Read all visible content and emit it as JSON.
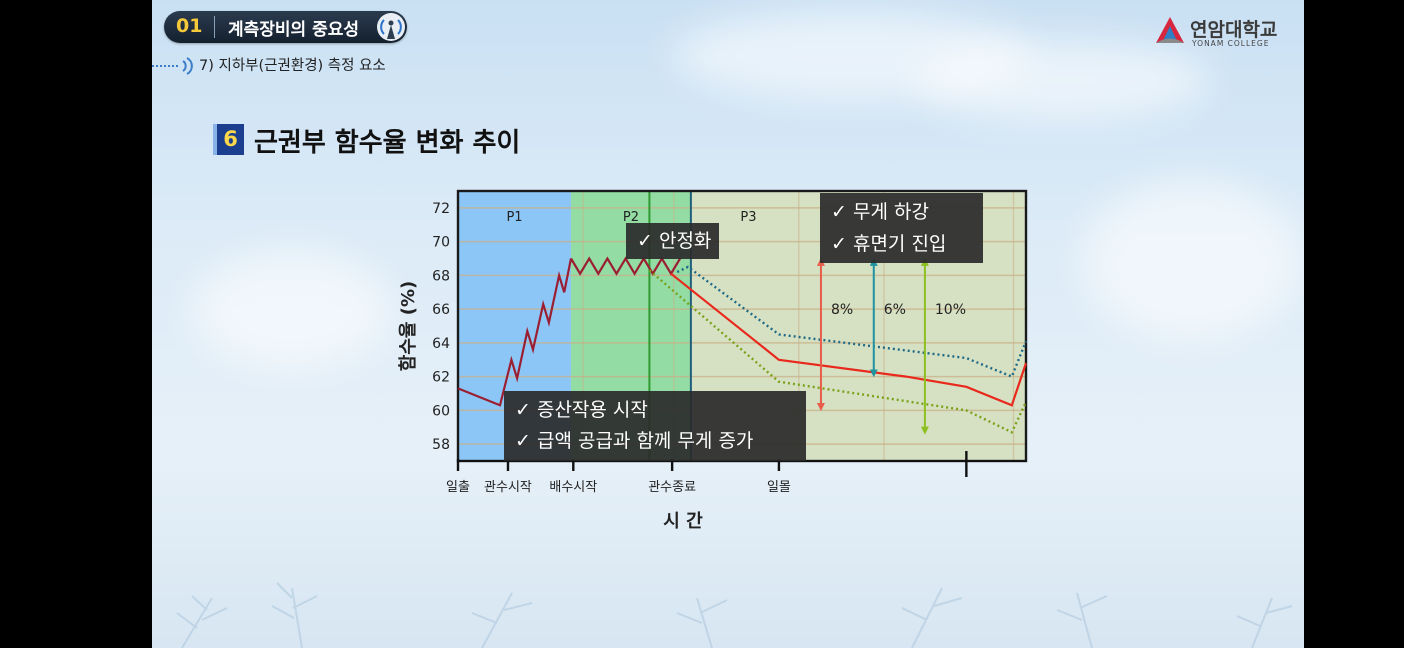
{
  "header": {
    "section_number": "01",
    "section_title": "계측장비의 중요성",
    "subsection": "7) 지하부(근권환경) 측정 요소"
  },
  "logo": {
    "name": "연암대학교",
    "sub": "YONAM COLLEGE",
    "icon": "yonam-logo-icon"
  },
  "slide_title": {
    "badge": "6",
    "text": "근권부 함수율 변화 추이"
  },
  "callouts": {
    "stable": [
      "✓ 안정화"
    ],
    "weight": [
      "✓ 무게 하강",
      "✓ 휴면기 진입"
    ],
    "transpiration": [
      "✓ 증산작용 시작",
      "✓ 급액 공급과 함께 무게 증가"
    ]
  },
  "colors": {
    "series_red": "#e8291c",
    "series_teal": "#1f6a86",
    "series_olive": "#7aa21a",
    "zig": "#9b1f33",
    "p1": "#8cc6f6",
    "p2": "#93dda4",
    "p3": "#d6e1c3",
    "arrow_red": "#e85c4a",
    "arrow_teal": "#1f93a0",
    "arrow_green": "#8cc021"
  },
  "chart_data": {
    "type": "line",
    "title": "",
    "ylabel": "함수율 (%)",
    "xlabel": "시   간",
    "ylim": [
      57,
      73
    ],
    "yticks": [
      58,
      60,
      62,
      64,
      66,
      68,
      70,
      72
    ],
    "grid": true,
    "x_domain": [
      0,
      100
    ],
    "phases": [
      {
        "label": "P1",
        "x_start": 0,
        "x_end": 19.9
      },
      {
        "label": "P2",
        "x_start": 19.9,
        "x_end": 41.0
      },
      {
        "label": "P3",
        "x_start": 41.0,
        "x_end": 100
      }
    ],
    "vertical_lines": [
      {
        "x": 33.7,
        "color": "#2f9a2f"
      },
      {
        "x": 41.0,
        "color": "#1f5f7a"
      }
    ],
    "x_events": [
      {
        "label": "일출",
        "x": 0
      },
      {
        "label": "관수시작",
        "x": 8.8
      },
      {
        "label": "배수시작",
        "x": 20.3
      },
      {
        "label": "관수종료",
        "x": 37.7
      },
      {
        "label": "일몰",
        "x": 56.5
      },
      {
        "label": "",
        "x": 89.5
      }
    ],
    "series": [
      {
        "name": "",
        "style": "solid",
        "color": "#9b1f33",
        "points": [
          [
            0,
            61.3
          ],
          [
            7.4,
            60.3
          ],
          [
            9.4,
            63.0
          ],
          [
            10.4,
            61.9
          ],
          [
            12.2,
            64.7
          ],
          [
            13.2,
            63.6
          ],
          [
            15.0,
            66.3
          ],
          [
            16.0,
            65.2
          ],
          [
            17.8,
            68.0
          ],
          [
            18.7,
            67.0
          ],
          [
            19.9,
            69.0
          ]
        ]
      },
      {
        "name": "",
        "style": "zigzag",
        "color": "#9b1f33",
        "points": [
          [
            19.9,
            69.0
          ],
          [
            21.5,
            68.1
          ],
          [
            23.1,
            69.0
          ],
          [
            24.7,
            68.1
          ],
          [
            26.3,
            69.0
          ],
          [
            27.9,
            68.1
          ],
          [
            29.5,
            69.0
          ],
          [
            31.1,
            68.1
          ],
          [
            32.7,
            69.0
          ],
          [
            34.3,
            68.1
          ],
          [
            35.9,
            69.0
          ],
          [
            37.5,
            68.1
          ],
          [
            39.1,
            69.0
          ]
        ]
      },
      {
        "name": "",
        "style": "solid",
        "color": "#e8291c",
        "points": [
          [
            37.5,
            68.1
          ],
          [
            56.5,
            63.0
          ],
          [
            78.9,
            62.0
          ],
          [
            89.5,
            61.4
          ],
          [
            97.5,
            60.3
          ],
          [
            100,
            62.8
          ]
        ]
      },
      {
        "name": "",
        "style": "dotted",
        "color": "#1f6a86",
        "points": [
          [
            38.6,
            68.2
          ],
          [
            40.5,
            68.5
          ],
          [
            56.5,
            64.5
          ],
          [
            89.5,
            63.1
          ],
          [
            97.5,
            62.0
          ],
          [
            100,
            64.1
          ]
        ]
      },
      {
        "name": "",
        "style": "dotted",
        "color": "#7aa21a",
        "points": [
          [
            33.7,
            68.3
          ],
          [
            56.5,
            61.7
          ],
          [
            89.5,
            60.0
          ],
          [
            97.5,
            58.7
          ],
          [
            100,
            60.5
          ]
        ]
      }
    ],
    "annotations": [
      {
        "label": "8%",
        "x": 63.9,
        "y_from": 68.8,
        "y_to": 60.2,
        "color": "#e85c4a"
      },
      {
        "label": "6%",
        "x": 73.2,
        "y_from": 68.8,
        "y_to": 62.2,
        "color": "#1f93a0"
      },
      {
        "label": "10%",
        "x": 82.2,
        "y_from": 68.8,
        "y_to": 58.8,
        "color": "#8cc021"
      }
    ]
  }
}
